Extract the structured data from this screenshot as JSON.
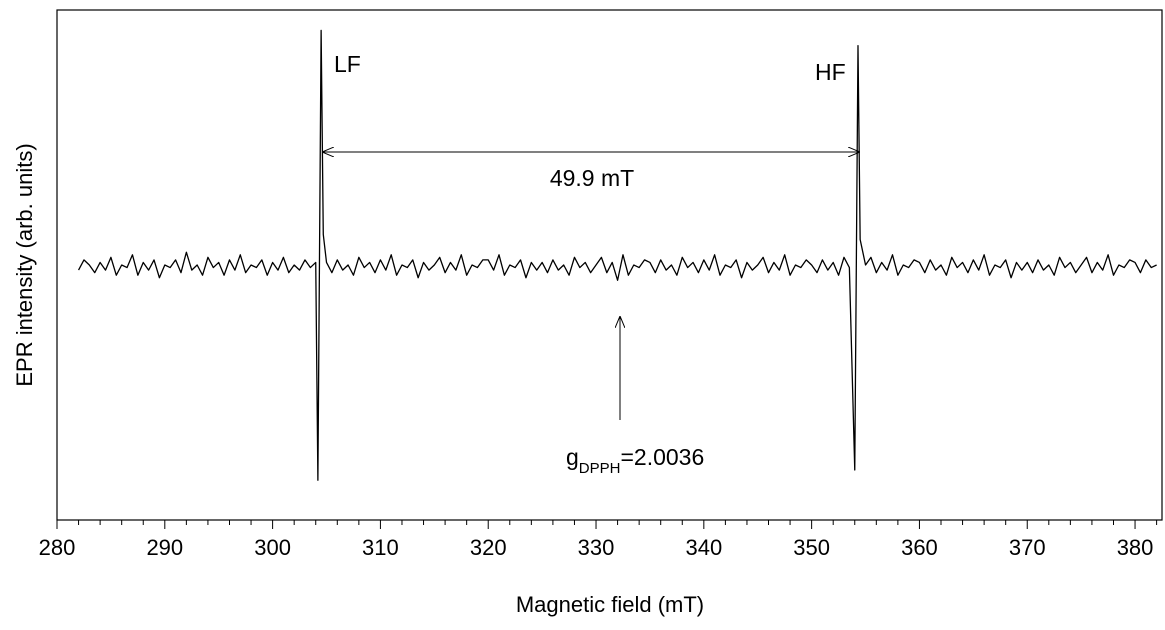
{
  "chart_data": {
    "type": "line",
    "x_label": "Magnetic field (mT)",
    "y_label": "EPR intensity (arb. units)",
    "color": "#000000",
    "xlim": [
      280,
      382.5
    ],
    "ylim": [
      0,
      100
    ],
    "xticks": [
      280,
      290,
      300,
      310,
      320,
      330,
      340,
      350,
      360,
      370,
      380
    ],
    "xminorticks": [
      282,
      284,
      286,
      288,
      292,
      294,
      296,
      298,
      302,
      304,
      306,
      308,
      312,
      314,
      316,
      318,
      322,
      324,
      326,
      328,
      332,
      334,
      336,
      338,
      342,
      344,
      346,
      348,
      352,
      354,
      356,
      358,
      362,
      364,
      366,
      368,
      372,
      374,
      376,
      378,
      382
    ],
    "annotations": {
      "lf": "LF",
      "hf": "HF",
      "spacing": "49.9 mT",
      "g": "g",
      "g_sub": "DPPH",
      "g_value": "=2.0036"
    },
    "x": [
      282,
      282.5,
      283,
      283.5,
      284,
      284.5,
      285,
      285.5,
      286,
      286.5,
      287,
      287.5,
      288,
      288.5,
      289,
      289.5,
      290,
      290.5,
      291,
      291.5,
      292,
      292.5,
      293,
      293.5,
      294,
      294.5,
      295,
      295.5,
      296,
      296.5,
      297,
      297.5,
      298,
      298.5,
      299,
      299.5,
      300,
      300.5,
      301,
      301.5,
      302,
      302.5,
      303,
      303.5,
      304,
      304.2,
      304.5,
      304.7,
      305,
      305.5,
      306,
      306.5,
      307,
      307.5,
      308,
      308.5,
      309,
      309.5,
      310,
      310.5,
      311,
      311.5,
      312,
      312.5,
      313,
      313.5,
      314,
      314.5,
      315,
      315.5,
      316,
      316.5,
      317,
      317.5,
      318,
      318.5,
      319,
      319.5,
      320,
      320.5,
      321,
      321.5,
      322,
      322.5,
      323,
      323.5,
      324,
      324.5,
      325,
      325.5,
      326,
      326.5,
      327,
      327.5,
      328,
      328.5,
      329,
      329.5,
      330,
      330.5,
      331,
      331.5,
      332,
      332.5,
      333,
      333.5,
      334,
      334.5,
      335,
      335.5,
      336,
      336.5,
      337,
      337.5,
      338,
      338.5,
      339,
      339.5,
      340,
      340.5,
      341,
      341.5,
      342,
      342.5,
      343,
      343.5,
      344,
      344.5,
      345,
      345.5,
      346,
      346.5,
      347,
      347.5,
      348,
      348.5,
      349,
      349.5,
      350,
      350.5,
      351,
      351.5,
      352,
      352.5,
      353,
      353.5,
      354,
      354.3,
      354.5,
      355,
      355.5,
      356,
      356.5,
      357,
      357.5,
      358,
      358.5,
      359,
      359.5,
      360,
      360.5,
      361,
      361.5,
      362,
      362.5,
      363,
      363.5,
      364,
      364.5,
      365,
      365.5,
      366,
      366.5,
      367,
      367.5,
      368,
      368.5,
      369,
      369.5,
      370,
      370.5,
      371,
      371.5,
      372,
      372.5,
      373,
      373.5,
      374,
      374.5,
      375,
      375.5,
      376,
      376.5,
      377,
      377.5,
      378,
      378.5,
      379,
      379.5,
      380,
      380.5,
      381,
      381.5,
      382
    ],
    "values": [
      49,
      51,
      50,
      48.5,
      50.5,
      49,
      51.5,
      48,
      50,
      49.5,
      52,
      48,
      50.5,
      49,
      51,
      47.5,
      50,
      49.5,
      51,
      48.5,
      52.5,
      49,
      50,
      48,
      51.5,
      49.5,
      50.5,
      48,
      51,
      49,
      52,
      48.5,
      50,
      49.5,
      51,
      48,
      50.5,
      49,
      51.5,
      48.5,
      50,
      49,
      51,
      49.5,
      50.5,
      7.8,
      96,
      56,
      50.5,
      48.5,
      51,
      49,
      50,
      48,
      51.5,
      49.5,
      50.5,
      48.5,
      51,
      49,
      52,
      48,
      50,
      49.5,
      51,
      47.5,
      50.5,
      49,
      50,
      51.5,
      48.5,
      50.5,
      49,
      52,
      48,
      50,
      49.5,
      51,
      51,
      49,
      52,
      48,
      50,
      49.5,
      51,
      47.5,
      50.5,
      49,
      50.5,
      48.5,
      51,
      49,
      50,
      48,
      51.5,
      49.5,
      50.5,
      48.5,
      50,
      51.5,
      48.5,
      50.5,
      47,
      52,
      48,
      50,
      49.5,
      51,
      50.5,
      48.5,
      51,
      49,
      50,
      48,
      51.5,
      49.5,
      50.5,
      48.5,
      51,
      49,
      52,
      48,
      50,
      49.5,
      51,
      47.5,
      50.5,
      49,
      50,
      51.5,
      48.5,
      50.5,
      49,
      52,
      48,
      50,
      49.5,
      51,
      50,
      48.5,
      51,
      49,
      50.5,
      48,
      51.5,
      49.5,
      9.8,
      93,
      55,
      50,
      51.5,
      48.5,
      50.5,
      49,
      52,
      48,
      50,
      49.5,
      51,
      50.5,
      48.5,
      51,
      49,
      50,
      48,
      51.5,
      49.5,
      50.5,
      48.5,
      51,
      49,
      52,
      48,
      50,
      49.5,
      51,
      47.5,
      50.5,
      49,
      50.5,
      48.5,
      51,
      49,
      50,
      48,
      51.5,
      49.5,
      50.5,
      48.5,
      50,
      51.5,
      48.5,
      50.5,
      49,
      52,
      48,
      50,
      49.5,
      51,
      50.5,
      48.5,
      51,
      49.5,
      50
    ]
  }
}
